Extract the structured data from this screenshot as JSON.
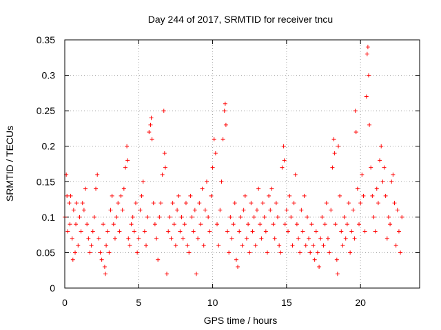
{
  "chart_data": {
    "type": "scatter",
    "title": "Day 244 of 2017, SRMTID for receiver tncu",
    "xlabel": "GPS time / hours",
    "ylabel": "SRMTID / TECUs",
    "xlim": [
      0,
      24
    ],
    "ylim": [
      0,
      0.35
    ],
    "xticks": [
      0,
      5,
      10,
      15,
      20
    ],
    "xtick_labels": [
      "0",
      "5",
      "10",
      "15",
      "20"
    ],
    "yticks": [
      0,
      0.05,
      0.1,
      0.15,
      0.2,
      0.25,
      0.3,
      0.35
    ],
    "ytick_labels": [
      "0",
      "0.05",
      "0.1",
      "0.15",
      "0.2",
      "0.25",
      "0.3",
      "0.35"
    ],
    "grid": true,
    "marker": "+",
    "color": "#ff0000",
    "series": [
      {
        "name": "SRMTID",
        "points": [
          [
            0.0,
            0.1
          ],
          [
            0.1,
            0.16
          ],
          [
            0.15,
            0.13
          ],
          [
            0.2,
            0.08
          ],
          [
            0.3,
            0.12
          ],
          [
            0.35,
            0.09
          ],
          [
            0.4,
            0.13
          ],
          [
            0.5,
            0.07
          ],
          [
            0.55,
            0.04
          ],
          [
            0.6,
            0.11
          ],
          [
            0.7,
            0.05
          ],
          [
            0.75,
            0.09
          ],
          [
            0.8,
            0.12
          ],
          [
            0.9,
            0.06
          ],
          [
            1.0,
            0.1
          ],
          [
            1.1,
            0.08
          ],
          [
            1.2,
            0.12
          ],
          [
            1.3,
            0.11
          ],
          [
            1.4,
            0.14
          ],
          [
            1.5,
            0.09
          ],
          [
            1.6,
            0.07
          ],
          [
            1.7,
            0.05
          ],
          [
            1.8,
            0.06
          ],
          [
            1.9,
            0.08
          ],
          [
            2.0,
            0.1
          ],
          [
            2.1,
            0.14
          ],
          [
            2.2,
            0.16
          ],
          [
            2.3,
            0.07
          ],
          [
            2.4,
            0.05
          ],
          [
            2.5,
            0.04
          ],
          [
            2.6,
            0.09
          ],
          [
            2.7,
            0.03
          ],
          [
            2.75,
            0.02
          ],
          [
            2.8,
            0.06
          ],
          [
            2.9,
            0.08
          ],
          [
            3.0,
            0.05
          ],
          [
            3.1,
            0.11
          ],
          [
            3.2,
            0.13
          ],
          [
            3.3,
            0.09
          ],
          [
            3.4,
            0.07
          ],
          [
            3.5,
            0.1
          ],
          [
            3.6,
            0.12
          ],
          [
            3.7,
            0.08
          ],
          [
            3.8,
            0.13
          ],
          [
            3.9,
            0.11
          ],
          [
            4.0,
            0.14
          ],
          [
            4.1,
            0.17
          ],
          [
            4.2,
            0.2
          ],
          [
            4.25,
            0.18
          ],
          [
            4.3,
            0.07
          ],
          [
            4.4,
            0.06
          ],
          [
            4.5,
            0.09
          ],
          [
            4.6,
            0.1
          ],
          [
            4.7,
            0.08
          ],
          [
            4.8,
            0.12
          ],
          [
            4.9,
            0.05
          ],
          [
            5.0,
            0.07
          ],
          [
            5.1,
            0.11
          ],
          [
            5.2,
            0.13
          ],
          [
            5.3,
            0.15
          ],
          [
            5.4,
            0.08
          ],
          [
            5.5,
            0.06
          ],
          [
            5.6,
            0.1
          ],
          [
            5.7,
            0.22
          ],
          [
            5.8,
            0.23
          ],
          [
            5.85,
            0.24
          ],
          [
            5.9,
            0.21
          ],
          [
            6.0,
            0.12
          ],
          [
            6.1,
            0.09
          ],
          [
            6.2,
            0.07
          ],
          [
            6.3,
            0.04
          ],
          [
            6.4,
            0.1
          ],
          [
            6.5,
            0.12
          ],
          [
            6.6,
            0.16
          ],
          [
            6.7,
            0.25
          ],
          [
            6.75,
            0.19
          ],
          [
            6.8,
            0.17
          ],
          [
            6.9,
            0.02
          ],
          [
            7.0,
            0.08
          ],
          [
            7.1,
            0.1
          ],
          [
            7.2,
            0.07
          ],
          [
            7.3,
            0.12
          ],
          [
            7.4,
            0.09
          ],
          [
            7.5,
            0.06
          ],
          [
            7.6,
            0.11
          ],
          [
            7.7,
            0.13
          ],
          [
            7.8,
            0.08
          ],
          [
            7.9,
            0.1
          ],
          [
            8.0,
            0.07
          ],
          [
            8.1,
            0.09
          ],
          [
            8.2,
            0.12
          ],
          [
            8.3,
            0.06
          ],
          [
            8.4,
            0.05
          ],
          [
            8.5,
            0.13
          ],
          [
            8.6,
            0.1
          ],
          [
            8.7,
            0.08
          ],
          [
            8.8,
            0.11
          ],
          [
            8.9,
            0.02
          ],
          [
            9.0,
            0.07
          ],
          [
            9.1,
            0.12
          ],
          [
            9.2,
            0.09
          ],
          [
            9.3,
            0.14
          ],
          [
            9.4,
            0.06
          ],
          [
            9.5,
            0.11
          ],
          [
            9.6,
            0.15
          ],
          [
            9.7,
            0.1
          ],
          [
            9.8,
            0.08
          ],
          [
            9.9,
            0.13
          ],
          [
            10.0,
            0.17
          ],
          [
            10.1,
            0.21
          ],
          [
            10.2,
            0.19
          ],
          [
            10.3,
            0.09
          ],
          [
            10.4,
            0.06
          ],
          [
            10.5,
            0.11
          ],
          [
            10.6,
            0.15
          ],
          [
            10.7,
            0.21
          ],
          [
            10.8,
            0.25
          ],
          [
            10.85,
            0.26
          ],
          [
            10.9,
            0.23
          ],
          [
            11.0,
            0.08
          ],
          [
            11.1,
            0.05
          ],
          [
            11.2,
            0.1
          ],
          [
            11.3,
            0.07
          ],
          [
            11.4,
            0.09
          ],
          [
            11.5,
            0.12
          ],
          [
            11.6,
            0.04
          ],
          [
            11.7,
            0.03
          ],
          [
            11.8,
            0.08
          ],
          [
            11.9,
            0.1
          ],
          [
            12.0,
            0.06
          ],
          [
            12.1,
            0.11
          ],
          [
            12.2,
            0.13
          ],
          [
            12.3,
            0.07
          ],
          [
            12.4,
            0.09
          ],
          [
            12.5,
            0.05
          ],
          [
            12.6,
            0.12
          ],
          [
            12.7,
            0.08
          ],
          [
            12.8,
            0.1
          ],
          [
            12.9,
            0.06
          ],
          [
            13.0,
            0.11
          ],
          [
            13.1,
            0.14
          ],
          [
            13.2,
            0.09
          ],
          [
            13.3,
            0.07
          ],
          [
            13.4,
            0.12
          ],
          [
            13.5,
            0.1
          ],
          [
            13.6,
            0.08
          ],
          [
            13.7,
            0.05
          ],
          [
            13.8,
            0.13
          ],
          [
            13.9,
            0.11
          ],
          [
            14.0,
            0.14
          ],
          [
            14.1,
            0.09
          ],
          [
            14.2,
            0.07
          ],
          [
            14.3,
            0.12
          ],
          [
            14.4,
            0.1
          ],
          [
            14.5,
            0.06
          ],
          [
            14.6,
            0.05
          ],
          [
            14.7,
            0.17
          ],
          [
            14.8,
            0.2
          ],
          [
            14.85,
            0.18
          ],
          [
            14.9,
            0.09
          ],
          [
            15.0,
            0.11
          ],
          [
            15.1,
            0.08
          ],
          [
            15.2,
            0.13
          ],
          [
            15.3,
            0.1
          ],
          [
            15.4,
            0.06
          ],
          [
            15.5,
            0.12
          ],
          [
            15.6,
            0.16
          ],
          [
            15.7,
            0.09
          ],
          [
            15.8,
            0.07
          ],
          [
            15.9,
            0.05
          ],
          [
            16.0,
            0.11
          ],
          [
            16.1,
            0.08
          ],
          [
            16.2,
            0.13
          ],
          [
            16.3,
            0.06
          ],
          [
            16.4,
            0.1
          ],
          [
            16.5,
            0.07
          ],
          [
            16.6,
            0.05
          ],
          [
            16.7,
            0.09
          ],
          [
            16.8,
            0.06
          ],
          [
            16.9,
            0.04
          ],
          [
            17.0,
            0.08
          ],
          [
            17.1,
            0.05
          ],
          [
            17.2,
            0.03
          ],
          [
            17.3,
            0.07
          ],
          [
            17.4,
            0.1
          ],
          [
            17.5,
            0.06
          ],
          [
            17.6,
            0.09
          ],
          [
            17.7,
            0.12
          ],
          [
            17.8,
            0.07
          ],
          [
            17.9,
            0.05
          ],
          [
            18.0,
            0.11
          ],
          [
            18.1,
            0.17
          ],
          [
            18.2,
            0.21
          ],
          [
            18.25,
            0.19
          ],
          [
            18.3,
            0.09
          ],
          [
            18.4,
            0.04
          ],
          [
            18.45,
            0.02
          ],
          [
            18.5,
            0.2
          ],
          [
            18.6,
            0.13
          ],
          [
            18.7,
            0.08
          ],
          [
            18.8,
            0.06
          ],
          [
            18.9,
            0.1
          ],
          [
            19.0,
            0.07
          ],
          [
            19.1,
            0.09
          ],
          [
            19.2,
            0.12
          ],
          [
            19.3,
            0.05
          ],
          [
            19.4,
            0.08
          ],
          [
            19.5,
            0.11
          ],
          [
            19.6,
            0.07
          ],
          [
            19.65,
            0.25
          ],
          [
            19.7,
            0.22
          ],
          [
            19.8,
            0.14
          ],
          [
            19.9,
            0.09
          ],
          [
            20.0,
            0.12
          ],
          [
            20.1,
            0.16
          ],
          [
            20.2,
            0.13
          ],
          [
            20.3,
            0.08
          ],
          [
            20.4,
            0.27
          ],
          [
            20.45,
            0.33
          ],
          [
            20.5,
            0.34
          ],
          [
            20.55,
            0.3
          ],
          [
            20.6,
            0.23
          ],
          [
            20.7,
            0.17
          ],
          [
            20.8,
            0.13
          ],
          [
            20.9,
            0.1
          ],
          [
            21.0,
            0.08
          ],
          [
            21.1,
            0.14
          ],
          [
            21.2,
            0.12
          ],
          [
            21.3,
            0.18
          ],
          [
            21.4,
            0.2
          ],
          [
            21.5,
            0.15
          ],
          [
            21.6,
            0.17
          ],
          [
            21.7,
            0.13
          ],
          [
            21.8,
            0.07
          ],
          [
            21.9,
            0.1
          ],
          [
            22.0,
            0.09
          ],
          [
            22.1,
            0.15
          ],
          [
            22.2,
            0.16
          ],
          [
            22.3,
            0.12
          ],
          [
            22.4,
            0.06
          ],
          [
            22.5,
            0.11
          ],
          [
            22.6,
            0.08
          ],
          [
            22.7,
            0.05
          ],
          [
            22.8,
            0.1
          ]
        ]
      }
    ]
  }
}
